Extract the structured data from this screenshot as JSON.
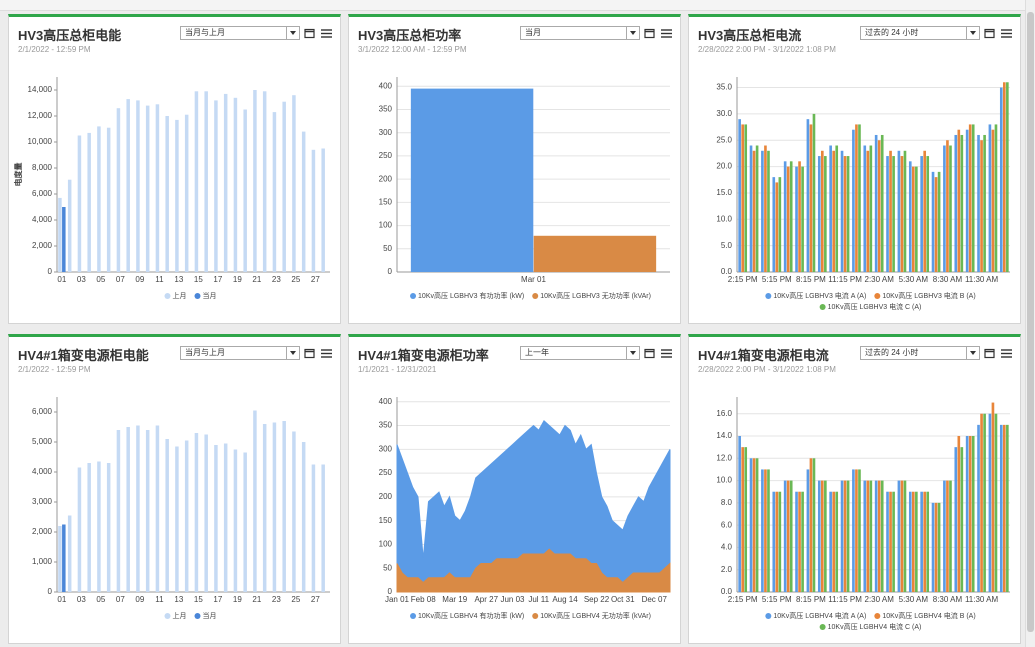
{
  "chart_data": [
    {
      "type": "bar",
      "title": "HV3高压总柜电能",
      "subtitle": "2/1/2022 - 12:59 PM",
      "selector": "当月与上月",
      "ylabel": "电度量",
      "categories": [
        "01",
        null,
        "03",
        null,
        "05",
        null,
        "07",
        null,
        "09",
        null,
        "11",
        null,
        "13",
        null,
        "15",
        null,
        "17",
        null,
        "19",
        null,
        "21",
        null,
        "23",
        null,
        "25",
        null,
        "27",
        null
      ],
      "series": [
        {
          "name": "上月",
          "color": "#c5daf4",
          "values": [
            5700,
            7100,
            10500,
            10700,
            11200,
            11100,
            12600,
            13300,
            13200,
            12800,
            12900,
            12000,
            11700,
            12100,
            13900,
            13900,
            13200,
            13700,
            13400,
            12500,
            14000,
            13900,
            12300,
            13100,
            13600,
            10800,
            9400,
            9500
          ]
        },
        {
          "name": "当月",
          "color": "#4a86d8",
          "values": [
            5000,
            null,
            null,
            null,
            null,
            null,
            null,
            null,
            null,
            null,
            null,
            null,
            null,
            null,
            null,
            null,
            null,
            null,
            null,
            null,
            null,
            null,
            null,
            null,
            null,
            null,
            null,
            null
          ]
        }
      ],
      "ylim": [
        0,
        15000
      ],
      "yticks": [
        0,
        {
          "value": 2000,
          "label": "2,000"
        },
        {
          "value": 4000,
          "label": "4,000"
        },
        {
          "value": 6000,
          "label": "6,000"
        },
        {
          "value": 8000,
          "label": "8,000"
        },
        {
          "value": 10000,
          "label": "10,000"
        },
        {
          "value": 12000,
          "label": "12,000"
        },
        {
          "value": 14000,
          "label": "14,000"
        }
      ],
      "grid": false
    },
    {
      "type": "bar",
      "title": "HV3高压总柜功率",
      "subtitle": "3/1/2022 12:00 AM - 12:59 PM",
      "selector": "当月",
      "categories": [
        "Mar 01"
      ],
      "series": [
        {
          "name": "10Kv高压 LGBHV3 有功功率 (kW)",
          "color": "#5b9be6",
          "values": [
            395
          ]
        },
        {
          "name": "10Kv高压 LGBHV3 无功功率 (kVAr)",
          "color": "#d98a45",
          "values": [
            78
          ]
        }
      ],
      "ylim": [
        0,
        420
      ],
      "yticks": [
        0,
        50,
        100,
        150,
        200,
        250,
        300,
        350,
        400
      ],
      "grid": true
    },
    {
      "type": "bar",
      "title": "HV3高压总柜电流",
      "subtitle": "2/28/2022 2:00 PM - 3/1/2022 1:08 PM",
      "selector": "过去的 24 小时",
      "categories": [
        "2:15 PM",
        null,
        null,
        "5:15 PM",
        null,
        null,
        "8:15 PM",
        null,
        null,
        "11:15 PM",
        null,
        null,
        "2:30 AM",
        null,
        null,
        "5:30 AM",
        null,
        null,
        "8:30 AM",
        null,
        null,
        "11:30 AM",
        null,
        null
      ],
      "series": [
        {
          "name": "10Kv高压 LGBHV3 电流 A (A)",
          "color": "#5b9be6",
          "values": [
            29,
            24,
            23,
            18,
            21,
            20,
            29,
            22,
            24,
            23,
            27,
            24,
            26,
            22,
            23,
            21,
            22,
            19,
            24,
            26,
            27,
            26,
            28,
            35
          ]
        },
        {
          "name": "10Kv高压 LGBHV3 电流 B (A)",
          "color": "#e8853a",
          "values": [
            28,
            23,
            24,
            17,
            20,
            21,
            28,
            23,
            23,
            22,
            28,
            23,
            25,
            23,
            22,
            20,
            23,
            18,
            25,
            27,
            28,
            25,
            27,
            36
          ]
        },
        {
          "name": "10Kv高压 LGBHV3 电流 C (A)",
          "color": "#6ab855",
          "values": [
            28,
            24,
            23,
            18,
            21,
            20,
            30,
            22,
            24,
            22,
            28,
            24,
            26,
            22,
            23,
            20,
            22,
            19,
            24,
            26,
            28,
            26,
            28,
            36
          ]
        }
      ],
      "ylim": [
        0,
        37
      ],
      "yticks": [
        {
          "value": 0,
          "label": "0.0"
        },
        {
          "value": 5,
          "label": "5.0"
        },
        {
          "value": 10,
          "label": "10.0"
        },
        {
          "value": 15,
          "label": "15.0"
        },
        {
          "value": 20,
          "label": "20.0"
        },
        {
          "value": 25,
          "label": "25.0"
        },
        {
          "value": 30,
          "label": "30.0"
        },
        {
          "value": 35,
          "label": "35.0"
        }
      ],
      "grid": true
    },
    {
      "type": "bar",
      "title": "HV4#1箱变电源柜电能",
      "subtitle": "2/1/2022 - 12:59 PM",
      "selector": "当月与上月",
      "categories": [
        "01",
        null,
        "03",
        null,
        "05",
        null,
        "07",
        null,
        "09",
        null,
        "11",
        null,
        "13",
        null,
        "15",
        null,
        "17",
        null,
        "19",
        null,
        "21",
        null,
        "23",
        null,
        "25",
        null,
        "27",
        null
      ],
      "series": [
        {
          "name": "上月",
          "color": "#c5daf4",
          "values": [
            2200,
            2550,
            4150,
            4300,
            4350,
            4300,
            5400,
            5500,
            5550,
            5400,
            5550,
            5100,
            4850,
            5050,
            5300,
            5250,
            4900,
            4950,
            4750,
            4650,
            6050,
            5600,
            5650,
            5700,
            5350,
            5000,
            4250,
            4250
          ]
        },
        {
          "name": "当月",
          "color": "#4a86d8",
          "values": [
            2250,
            null,
            null,
            null,
            null,
            null,
            null,
            null,
            null,
            null,
            null,
            null,
            null,
            null,
            null,
            null,
            null,
            null,
            null,
            null,
            null,
            null,
            null,
            null,
            null,
            null,
            null,
            null
          ]
        }
      ],
      "ylim": [
        0,
        6500
      ],
      "yticks": [
        0,
        {
          "value": 1000,
          "label": "1,000"
        },
        {
          "value": 2000,
          "label": "2,000"
        },
        {
          "value": 3000,
          "label": "3,000"
        },
        {
          "value": 4000,
          "label": "4,000"
        },
        {
          "value": 5000,
          "label": "5,000"
        },
        {
          "value": 6000,
          "label": "6,000"
        }
      ],
      "grid": false
    },
    {
      "type": "area",
      "title": "HV4#1箱变电源柜功率",
      "subtitle": "1/1/2021 - 12/31/2021",
      "selector": "上一年",
      "categories": [
        "Jan 01",
        null,
        null,
        null,
        null,
        "Feb 08",
        null,
        null,
        null,
        null,
        null,
        "Mar 19",
        null,
        null,
        null,
        null,
        null,
        "Apr 27",
        null,
        null,
        null,
        null,
        "Jun 03",
        null,
        null,
        null,
        null,
        "Jul 11",
        null,
        null,
        null,
        null,
        "Aug 14",
        null,
        null,
        null,
        null,
        null,
        "Sep 22",
        null,
        null,
        null,
        null,
        "Oct 31",
        null,
        null,
        null,
        null,
        null,
        "Dec 07",
        null,
        null,
        null
      ],
      "series": [
        {
          "name": "10Kv高压 LGBHV4 有功功率 (kW)",
          "color": "#5b9be6",
          "values": [
            310,
            280,
            250,
            220,
            200,
            70,
            190,
            200,
            210,
            180,
            200,
            160,
            150,
            170,
            200,
            240,
            250,
            260,
            270,
            280,
            290,
            300,
            310,
            320,
            330,
            340,
            350,
            340,
            360,
            350,
            340,
            330,
            350,
            340,
            310,
            330,
            300,
            310,
            250,
            200,
            180,
            150,
            140,
            130,
            160,
            180,
            200,
            190,
            220,
            240,
            260,
            280,
            300
          ]
        },
        {
          "name": "10Kv高压 LGBHV4 无功功率 (kVAr)",
          "color": "#d98a45",
          "values": [
            60,
            40,
            30,
            30,
            30,
            20,
            30,
            30,
            30,
            30,
            40,
            30,
            30,
            30,
            30,
            50,
            60,
            60,
            60,
            70,
            70,
            70,
            70,
            70,
            80,
            80,
            80,
            80,
            80,
            90,
            80,
            80,
            80,
            80,
            70,
            70,
            70,
            60,
            60,
            40,
            30,
            30,
            30,
            20,
            30,
            40,
            40,
            40,
            40,
            40,
            40,
            50,
            60
          ]
        }
      ],
      "ylim": [
        0,
        410
      ],
      "yticks": [
        0,
        50,
        100,
        150,
        200,
        250,
        300,
        350,
        400
      ],
      "grid": true
    },
    {
      "type": "bar",
      "title": "HV4#1箱变电源柜电流",
      "subtitle": "2/28/2022 2:00 PM - 3/1/2022 1:08 PM",
      "selector": "过去的 24 小时",
      "categories": [
        "2:15 PM",
        null,
        null,
        "5:15 PM",
        null,
        null,
        "8:15 PM",
        null,
        null,
        "11:15 PM",
        null,
        null,
        "2:30 AM",
        null,
        null,
        "5:30 AM",
        null,
        null,
        "8:30 AM",
        null,
        null,
        "11:30 AM",
        null,
        null
      ],
      "series": [
        {
          "name": "10Kv高压 LGBHV4 电流 A (A)",
          "color": "#5b9be6",
          "values": [
            14,
            12,
            11,
            9,
            10,
            9,
            11,
            10,
            9,
            10,
            11,
            10,
            10,
            9,
            10,
            9,
            9,
            8,
            10,
            13,
            14,
            15,
            16,
            15
          ]
        },
        {
          "name": "10Kv高压 LGBHV4 电流 B (A)",
          "color": "#e8853a",
          "values": [
            13,
            12,
            11,
            9,
            10,
            9,
            12,
            10,
            9,
            10,
            11,
            10,
            10,
            9,
            10,
            9,
            9,
            8,
            10,
            14,
            14,
            16,
            17,
            15
          ]
        },
        {
          "name": "10Kv高压 LGBHV4 电流 C (A)",
          "color": "#6ab855",
          "values": [
            13,
            12,
            11,
            9,
            10,
            9,
            12,
            10,
            9,
            10,
            11,
            10,
            10,
            9,
            10,
            9,
            9,
            8,
            10,
            13,
            14,
            16,
            16,
            15
          ]
        }
      ],
      "ylim": [
        0,
        17.5
      ],
      "yticks": [
        {
          "value": 0,
          "label": "0.0"
        },
        {
          "value": 2,
          "label": "2.0"
        },
        {
          "value": 4,
          "label": "4.0"
        },
        {
          "value": 6,
          "label": "6.0"
        },
        {
          "value": 8,
          "label": "8.0"
        },
        {
          "value": 10,
          "label": "10.0"
        },
        {
          "value": 12,
          "label": "12.0"
        },
        {
          "value": 14,
          "label": "14.0"
        },
        {
          "value": 16,
          "label": "16.0"
        }
      ],
      "grid": true
    }
  ]
}
